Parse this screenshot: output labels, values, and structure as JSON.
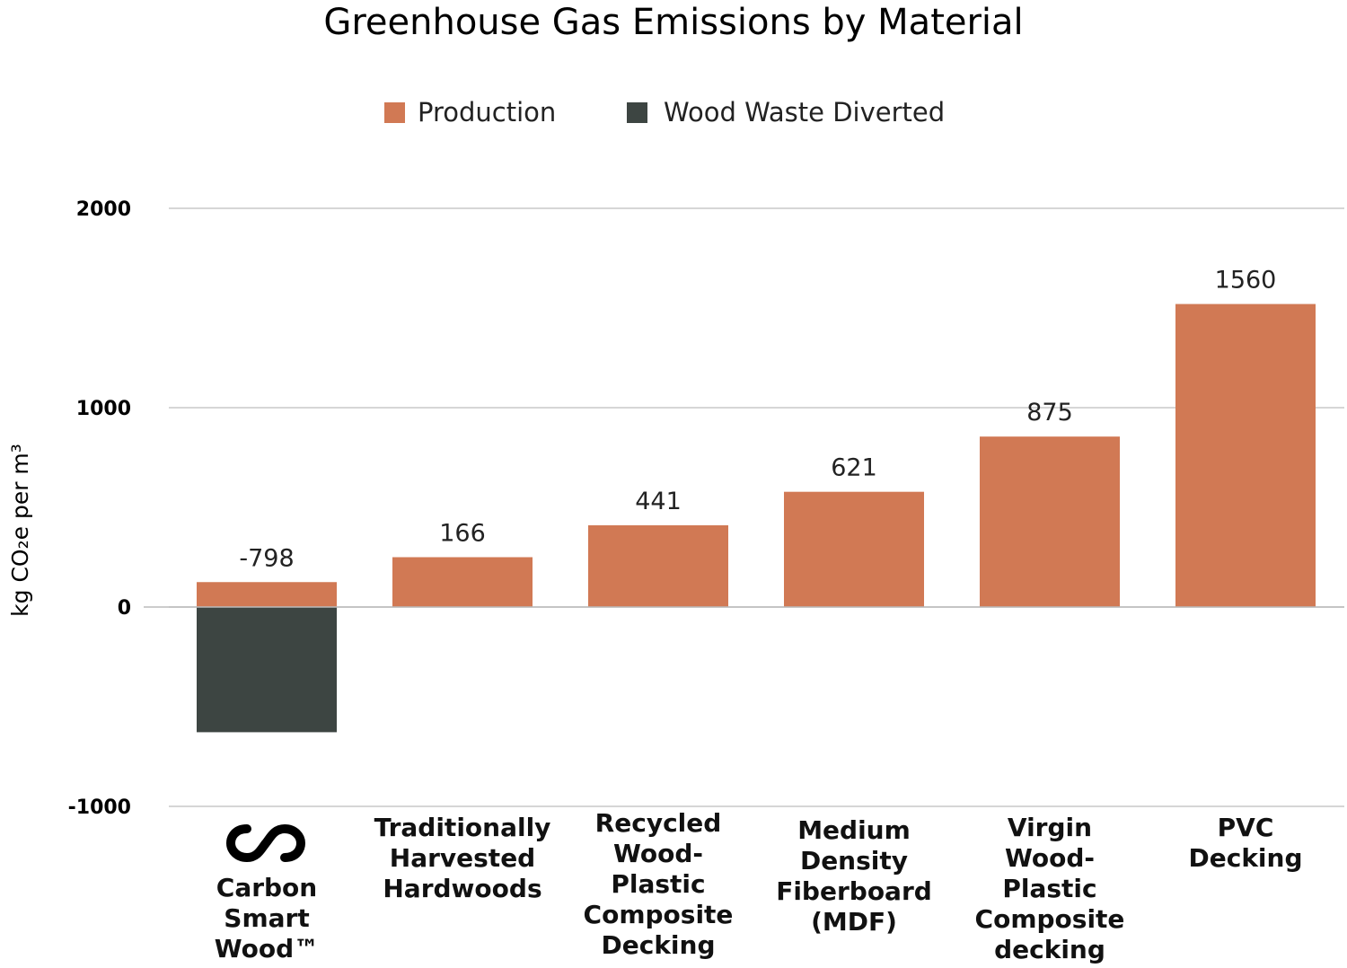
{
  "chart_data": {
    "type": "bar",
    "title": "Greenhouse Gas Emissions by Material",
    "ylabel": "kg CO₂e per m³",
    "ylim": [
      -1000,
      2000
    ],
    "yticks": [
      "2000",
      "1000",
      "0",
      "-1000"
    ],
    "ytick_values": [
      2000,
      1000,
      0,
      -1000
    ],
    "grid": true,
    "legend_position": "top",
    "categories": [
      "Carbon Smart Wood™",
      "Traditionally Harvested Hardwoods",
      "Recycled Wood-Plastic Composite Decking",
      "Medium Density Fiberboard (MDF)",
      "Virgin Wood-Plastic Composite decking",
      "PVC Decking"
    ],
    "category_lines": [
      [
        "Carbon",
        "Smart",
        "Wood™"
      ],
      [
        "Traditionally",
        "Harvested",
        "Hardwoods"
      ],
      [
        "Recycled",
        "Wood-",
        "Plastic",
        "Composite",
        "Decking"
      ],
      [
        "Medium",
        "Density",
        "Fiberboard",
        "(MDF)"
      ],
      [
        "Virgin",
        "Wood-",
        "Plastic",
        "Composite",
        "decking"
      ],
      [
        "PVC",
        "Decking"
      ]
    ],
    "series": [
      {
        "name": "Production",
        "color": "#D17954",
        "values": [
          125,
          250,
          410,
          578,
          855,
          1520
        ]
      },
      {
        "name": "Wood Waste Diverted",
        "color": "#3D4542",
        "values": [
          -628,
          0,
          0,
          0,
          0,
          0
        ]
      }
    ],
    "data_labels": [
      "-798",
      "166",
      "441",
      "621",
      "875",
      "1560"
    ]
  },
  "logo_icon": "infinity-s-logo"
}
